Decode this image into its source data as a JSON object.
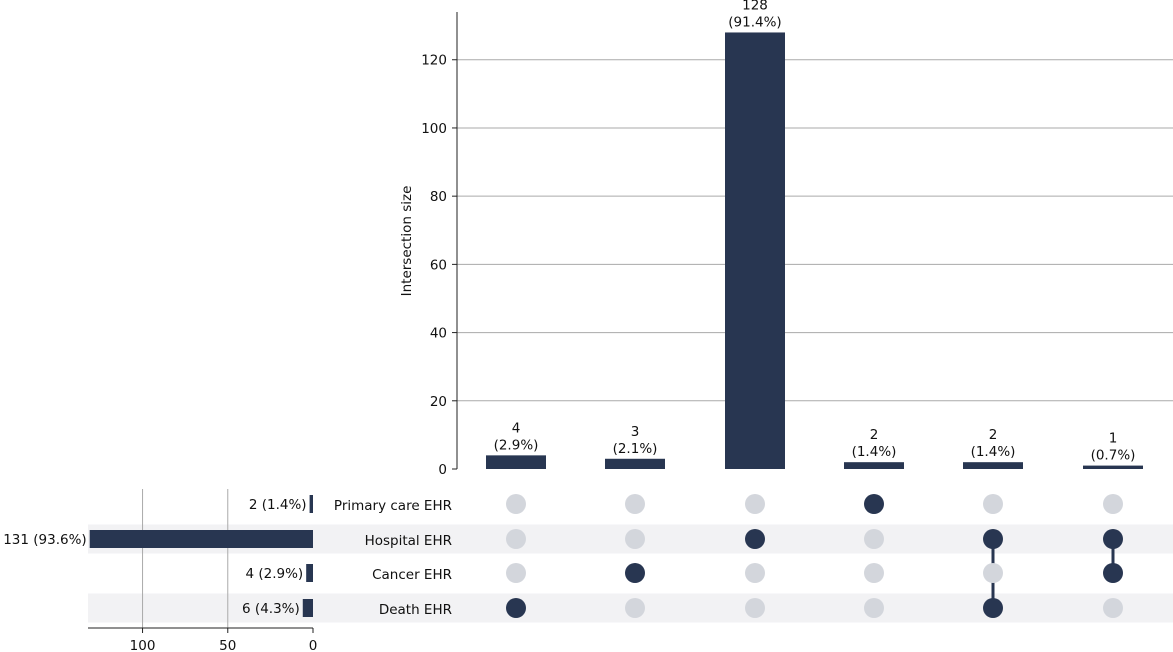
{
  "chart_data": {
    "type": "bar",
    "chart_kind": "upset",
    "ylabel": "Intersection size",
    "ylim": [
      0,
      134
    ],
    "y_ticks": [
      0,
      20,
      40,
      60,
      80,
      100,
      120
    ],
    "grid": true,
    "sets": [
      "Primary care EHR",
      "Hospital EHR",
      "Cancer EHR",
      "Death EHR"
    ],
    "set_sizes": [
      {
        "name": "Primary care EHR",
        "value": 2,
        "label": "2 (1.4%)"
      },
      {
        "name": "Hospital EHR",
        "value": 131,
        "label": "131 (93.6%)"
      },
      {
        "name": "Cancer EHR",
        "value": 4,
        "label": "4 (2.9%)"
      },
      {
        "name": "Death EHR",
        "value": 6,
        "label": "6 (4.3%)"
      }
    ],
    "set_size_xlim": [
      0,
      132
    ],
    "set_size_ticks": [
      100,
      50,
      0
    ],
    "intersections": [
      {
        "value": 4,
        "label_count": "4",
        "label_pct": "(2.9%)",
        "members": [
          "Death EHR"
        ]
      },
      {
        "value": 3,
        "label_count": "3",
        "label_pct": "(2.1%)",
        "members": [
          "Cancer EHR"
        ]
      },
      {
        "value": 128,
        "label_count": "128",
        "label_pct": "(91.4%)",
        "members": [
          "Hospital EHR"
        ]
      },
      {
        "value": 2,
        "label_count": "2",
        "label_pct": "(1.4%)",
        "members": [
          "Primary care EHR"
        ]
      },
      {
        "value": 2,
        "label_count": "2",
        "label_pct": "(1.4%)",
        "members": [
          "Hospital EHR",
          "Death EHR"
        ]
      },
      {
        "value": 1,
        "label_count": "1",
        "label_pct": "(0.7%)",
        "members": [
          "Hospital EHR",
          "Cancer EHR"
        ]
      }
    ]
  },
  "colors": {
    "bar": "#283651",
    "dot_active": "#283651",
    "dot_inactive": "#d3d6dc",
    "stripe": "#f2f2f4",
    "grid": "#aaaaaa",
    "axis": "#222222"
  }
}
